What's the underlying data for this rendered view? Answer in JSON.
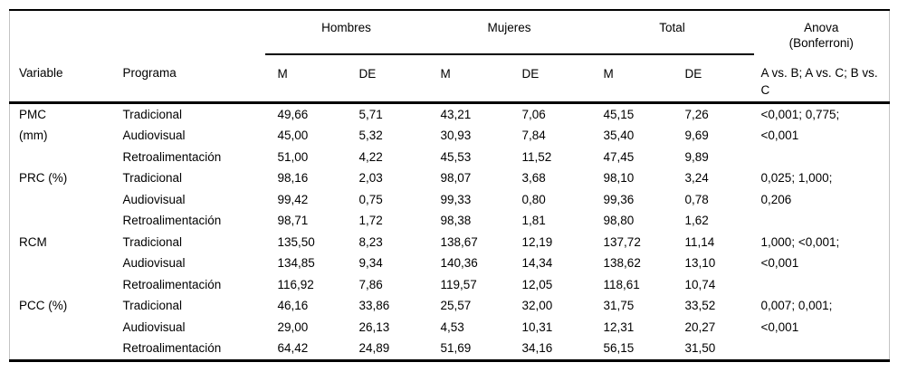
{
  "table": {
    "group_headers": {
      "hombres": "Hombres",
      "mujeres": "Mujeres",
      "total": "Total",
      "anova_lines": [
        "Anova",
        "(Bonferroni)"
      ]
    },
    "sub_headers": {
      "variable": "Variable",
      "programa": "Programa",
      "m": "M",
      "de": "DE",
      "anova_comparisons": "A vs. B; A vs. C; B vs. C"
    },
    "groups": [
      {
        "variable_lines": [
          "PMC",
          "(mm)"
        ],
        "anova_lines": [
          "<0,001; 0,775;",
          "<0,001"
        ],
        "rows": [
          {
            "programa": "Tradicional",
            "values": [
              "49,66",
              "5,71",
              "43,21",
              "7,06",
              "45,15",
              "7,26"
            ]
          },
          {
            "programa": "Audiovisual",
            "values": [
              "45,00",
              "5,32",
              "30,93",
              "7,84",
              "35,40",
              "9,69"
            ]
          },
          {
            "programa": "Retroalimentación",
            "values": [
              "51,00",
              "4,22",
              "45,53",
              "11,52",
              "47,45",
              "9,89"
            ]
          }
        ]
      },
      {
        "variable_lines": [
          "PRC (%)"
        ],
        "anova_lines": [
          "0,025; 1,000;",
          "0,206"
        ],
        "rows": [
          {
            "programa": "Tradicional",
            "values": [
              "98,16",
              "2,03",
              "98,07",
              "3,68",
              "98,10",
              "3,24"
            ]
          },
          {
            "programa": "Audiovisual",
            "values": [
              "99,42",
              "0,75",
              "99,33",
              "0,80",
              "99,36",
              "0,78"
            ]
          },
          {
            "programa": "Retroalimentación",
            "values": [
              "98,71",
              "1,72",
              "98,38",
              "1,81",
              "98,80",
              "1,62"
            ]
          }
        ]
      },
      {
        "variable_lines": [
          "RCM"
        ],
        "anova_lines": [
          "1,000; <0,001;",
          "<0,001"
        ],
        "rows": [
          {
            "programa": "Tradicional",
            "values": [
              "135,50",
              "8,23",
              "138,67",
              "12,19",
              "137,72",
              "11,14"
            ]
          },
          {
            "programa": "Audiovisual",
            "values": [
              "134,85",
              "9,34",
              "140,36",
              "14,34",
              "138,62",
              "13,10"
            ]
          },
          {
            "programa": "Retroalimentación",
            "values": [
              "116,92",
              "7,86",
              "119,57",
              "12,05",
              "118,61",
              "10,74"
            ]
          }
        ]
      },
      {
        "variable_lines": [
          "PCC (%)"
        ],
        "anova_lines": [
          "0,007; 0,001;",
          "<0,001"
        ],
        "rows": [
          {
            "programa": "Tradicional",
            "values": [
              "46,16",
              "33,86",
              "25,57",
              "32,00",
              "31,75",
              "33,52"
            ]
          },
          {
            "programa": "Audiovisual",
            "values": [
              "29,00",
              "26,13",
              "4,53",
              "10,31",
              "12,31",
              "20,27"
            ]
          },
          {
            "programa": "Retroalimentación",
            "values": [
              "64,42",
              "24,89",
              "51,69",
              "34,16",
              "56,15",
              "31,50"
            ]
          }
        ]
      }
    ]
  }
}
